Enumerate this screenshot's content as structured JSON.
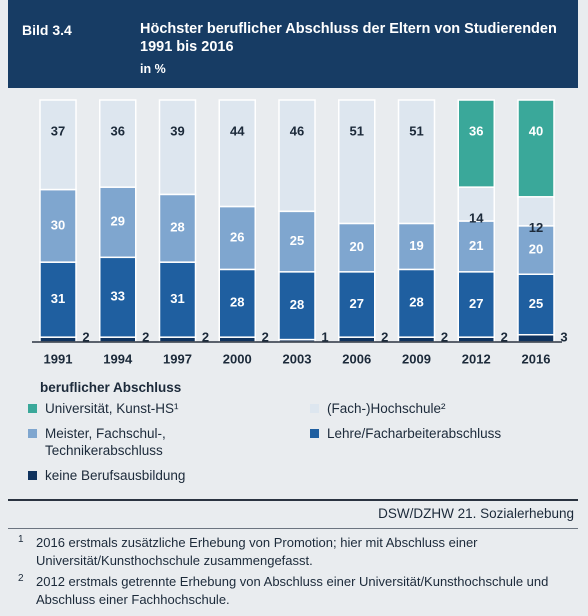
{
  "chart_data": {
    "type": "stacked_bar",
    "label": "Bild 3.4",
    "title": "Höchster beruflicher Abschluss der Eltern von Studierenden 1991 bis 2016",
    "subtitle": "in %",
    "categories": [
      "1991",
      "1994",
      "1997",
      "2000",
      "2003",
      "2006",
      "2009",
      "2012",
      "2016"
    ],
    "ylim": [
      0,
      100
    ],
    "legend_title": "beruflicher Abschluss",
    "series": [
      {
        "name": "keine Berufsausbildung",
        "color": "#10335e",
        "values": [
          2,
          2,
          2,
          2,
          1,
          2,
          2,
          2,
          3
        ]
      },
      {
        "name": "Lehre/Facharbeiterabschluss",
        "color": "#1f5fa0",
        "values": [
          31,
          33,
          31,
          28,
          28,
          27,
          28,
          27,
          25
        ]
      },
      {
        "name": "Meister, Fachschul-, Technikerabschluss",
        "color": "#7fa6cf",
        "values": [
          30,
          29,
          28,
          26,
          25,
          20,
          19,
          21,
          20
        ]
      },
      {
        "name": "(Fach-)Hochschule²",
        "color": "#dde6ef",
        "values": [
          37,
          36,
          39,
          44,
          46,
          51,
          51,
          14,
          12
        ]
      },
      {
        "name": "Universität, Kunst-HS¹",
        "color": "#3aa89a",
        "values": [
          null,
          null,
          null,
          null,
          null,
          null,
          null,
          36,
          40
        ]
      }
    ],
    "source": "DSW/DZHW 21. Sozialerhebung",
    "footnotes": [
      {
        "marker": "1",
        "text": "2016 erstmals zusätzliche Erhebung von Promotion; hier mit Abschluss einer Universität/Kunsthochschule zusammengefasst."
      },
      {
        "marker": "2",
        "text": "2012 erstmals getrennte Erhebung von Abschluss einer Universität/Kunsthochschule und Abschluss einer Fachhochschule."
      }
    ]
  }
}
